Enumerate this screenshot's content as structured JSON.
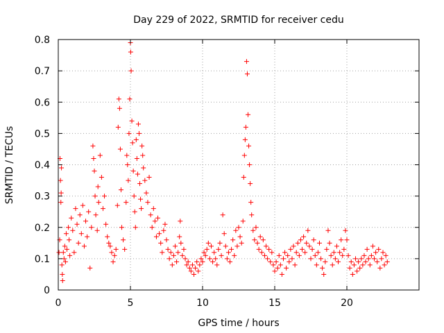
{
  "chart_data": {
    "type": "scatter",
    "title": "Day 229 of 2022, SRMTID for receiver cedu",
    "xlabel": "GPS time / hours",
    "ylabel": "SRMTID / TECUs",
    "xlim": [
      0,
      25
    ],
    "ylim": [
      0,
      0.8
    ],
    "x_ticks": [
      0,
      5,
      10,
      15,
      20
    ],
    "x_tick_labels": [
      "0",
      "5",
      "10",
      "15",
      "20"
    ],
    "y_ticks": [
      0,
      0.1,
      0.2,
      0.3,
      0.4,
      0.5,
      0.6,
      0.7,
      0.8
    ],
    "y_tick_labels": [
      "0",
      "0.1",
      "0.2",
      "0.3",
      "0.4",
      "0.5",
      "0.6",
      "0.7",
      "0.8"
    ],
    "grid": true,
    "marker": "+",
    "marker_color": "#ff0000",
    "series": [
      {
        "name": "SRMTID",
        "points": [
          [
            0.05,
            0.12
          ],
          [
            0.1,
            0.16
          ],
          [
            0.12,
            0.42
          ],
          [
            0.15,
            0.35
          ],
          [
            0.18,
            0.28
          ],
          [
            0.2,
            0.31
          ],
          [
            0.22,
            0.39
          ],
          [
            0.25,
            0.08
          ],
          [
            0.28,
            0.05
          ],
          [
            0.3,
            0.03
          ],
          [
            0.35,
            0.12
          ],
          [
            0.4,
            0.1
          ],
          [
            0.45,
            0.14
          ],
          [
            0.5,
            0.09
          ],
          [
            0.55,
            0.18
          ],
          [
            0.6,
            0.13
          ],
          [
            0.7,
            0.2
          ],
          [
            0.75,
            0.16
          ],
          [
            0.8,
            0.11
          ],
          [
            0.9,
            0.23
          ],
          [
            1.0,
            0.19
          ],
          [
            1.1,
            0.12
          ],
          [
            1.2,
            0.26
          ],
          [
            1.3,
            0.21
          ],
          [
            1.4,
            0.15
          ],
          [
            1.5,
            0.24
          ],
          [
            1.6,
            0.18
          ],
          [
            1.7,
            0.27
          ],
          [
            1.8,
            0.14
          ],
          [
            1.9,
            0.22
          ],
          [
            2.0,
            0.17
          ],
          [
            2.1,
            0.25
          ],
          [
            2.2,
            0.07
          ],
          [
            2.3,
            0.2
          ],
          [
            2.4,
            0.46
          ],
          [
            2.45,
            0.42
          ],
          [
            2.5,
            0.38
          ],
          [
            2.55,
            0.3
          ],
          [
            2.6,
            0.24
          ],
          [
            2.7,
            0.19
          ],
          [
            2.75,
            0.33
          ],
          [
            2.8,
            0.28
          ],
          [
            2.9,
            0.43
          ],
          [
            3.0,
            0.36
          ],
          [
            3.1,
            0.26
          ],
          [
            3.2,
            0.3
          ],
          [
            3.3,
            0.21
          ],
          [
            3.4,
            0.17
          ],
          [
            3.5,
            0.15
          ],
          [
            3.6,
            0.14
          ],
          [
            3.7,
            0.12
          ],
          [
            3.8,
            0.09
          ],
          [
            3.9,
            0.11
          ],
          [
            4.0,
            0.13
          ],
          [
            4.1,
            0.27
          ],
          [
            4.15,
            0.52
          ],
          [
            4.2,
            0.61
          ],
          [
            4.25,
            0.58
          ],
          [
            4.3,
            0.45
          ],
          [
            4.35,
            0.32
          ],
          [
            4.4,
            0.2
          ],
          [
            4.5,
            0.16
          ],
          [
            4.6,
            0.13
          ],
          [
            4.7,
            0.28
          ],
          [
            4.75,
            0.43
          ],
          [
            4.8,
            0.4
          ],
          [
            4.85,
            0.35
          ],
          [
            4.9,
            0.5
          ],
          [
            4.95,
            0.61
          ],
          [
            5.0,
            0.79
          ],
          [
            5.02,
            0.76
          ],
          [
            5.05,
            0.7
          ],
          [
            5.1,
            0.54
          ],
          [
            5.15,
            0.47
          ],
          [
            5.2,
            0.38
          ],
          [
            5.25,
            0.3
          ],
          [
            5.3,
            0.25
          ],
          [
            5.35,
            0.2
          ],
          [
            5.4,
            0.48
          ],
          [
            5.45,
            0.42
          ],
          [
            5.5,
            0.37
          ],
          [
            5.55,
            0.53
          ],
          [
            5.6,
            0.5
          ],
          [
            5.65,
            0.34
          ],
          [
            5.7,
            0.29
          ],
          [
            5.75,
            0.26
          ],
          [
            5.8,
            0.46
          ],
          [
            5.85,
            0.43
          ],
          [
            5.9,
            0.39
          ],
          [
            6.0,
            0.35
          ],
          [
            6.1,
            0.31
          ],
          [
            6.2,
            0.28
          ],
          [
            6.3,
            0.36
          ],
          [
            6.4,
            0.24
          ],
          [
            6.5,
            0.2
          ],
          [
            6.6,
            0.26
          ],
          [
            6.7,
            0.22
          ],
          [
            6.8,
            0.17
          ],
          [
            6.9,
            0.23
          ],
          [
            7.0,
            0.18
          ],
          [
            7.1,
            0.15
          ],
          [
            7.2,
            0.12
          ],
          [
            7.3,
            0.19
          ],
          [
            7.4,
            0.21
          ],
          [
            7.5,
            0.16
          ],
          [
            7.6,
            0.13
          ],
          [
            7.7,
            0.1
          ],
          [
            7.8,
            0.12
          ],
          [
            7.9,
            0.08
          ],
          [
            8.0,
            0.11
          ],
          [
            8.1,
            0.14
          ],
          [
            8.2,
            0.09
          ],
          [
            8.3,
            0.12
          ],
          [
            8.4,
            0.17
          ],
          [
            8.45,
            0.22
          ],
          [
            8.5,
            0.15
          ],
          [
            8.6,
            0.11
          ],
          [
            8.7,
            0.13
          ],
          [
            8.8,
            0.1
          ],
          [
            8.9,
            0.08
          ],
          [
            9.0,
            0.09
          ],
          [
            9.1,
            0.07
          ],
          [
            9.2,
            0.06
          ],
          [
            9.3,
            0.08
          ],
          [
            9.4,
            0.05
          ],
          [
            9.5,
            0.07
          ],
          [
            9.6,
            0.09
          ],
          [
            9.7,
            0.06
          ],
          [
            9.8,
            0.08
          ],
          [
            9.9,
            0.1
          ],
          [
            10.0,
            0.09
          ],
          [
            10.1,
            0.12
          ],
          [
            10.2,
            0.11
          ],
          [
            10.3,
            0.13
          ],
          [
            10.4,
            0.15
          ],
          [
            10.5,
            0.1
          ],
          [
            10.6,
            0.14
          ],
          [
            10.7,
            0.09
          ],
          [
            10.8,
            0.12
          ],
          [
            10.9,
            0.1
          ],
          [
            11.0,
            0.08
          ],
          [
            11.1,
            0.13
          ],
          [
            11.2,
            0.15
          ],
          [
            11.3,
            0.11
          ],
          [
            11.4,
            0.24
          ],
          [
            11.5,
            0.18
          ],
          [
            11.6,
            0.14
          ],
          [
            11.7,
            0.1
          ],
          [
            11.8,
            0.12
          ],
          [
            11.9,
            0.09
          ],
          [
            12.0,
            0.13
          ],
          [
            12.1,
            0.16
          ],
          [
            12.2,
            0.11
          ],
          [
            12.3,
            0.19
          ],
          [
            12.4,
            0.14
          ],
          [
            12.5,
            0.2
          ],
          [
            12.6,
            0.17
          ],
          [
            12.7,
            0.15
          ],
          [
            12.8,
            0.22
          ],
          [
            12.85,
            0.36
          ],
          [
            12.9,
            0.43
          ],
          [
            12.95,
            0.48
          ],
          [
            13.0,
            0.52
          ],
          [
            13.05,
            0.73
          ],
          [
            13.1,
            0.69
          ],
          [
            13.15,
            0.56
          ],
          [
            13.2,
            0.46
          ],
          [
            13.25,
            0.4
          ],
          [
            13.3,
            0.34
          ],
          [
            13.35,
            0.28
          ],
          [
            13.4,
            0.24
          ],
          [
            13.5,
            0.19
          ],
          [
            13.6,
            0.16
          ],
          [
            13.7,
            0.2
          ],
          [
            13.8,
            0.15
          ],
          [
            13.9,
            0.13
          ],
          [
            14.0,
            0.17
          ],
          [
            14.1,
            0.12
          ],
          [
            14.2,
            0.16
          ],
          [
            14.3,
            0.11
          ],
          [
            14.4,
            0.14
          ],
          [
            14.5,
            0.1
          ],
          [
            14.6,
            0.13
          ],
          [
            14.7,
            0.09
          ],
          [
            14.8,
            0.12
          ],
          [
            14.9,
            0.08
          ],
          [
            15.0,
            0.06
          ],
          [
            15.1,
            0.09
          ],
          [
            15.2,
            0.07
          ],
          [
            15.3,
            0.11
          ],
          [
            15.4,
            0.08
          ],
          [
            15.5,
            0.05
          ],
          [
            15.6,
            0.1
          ],
          [
            15.7,
            0.12
          ],
          [
            15.8,
            0.07
          ],
          [
            15.9,
            0.11
          ],
          [
            16.0,
            0.09
          ],
          [
            16.1,
            0.13
          ],
          [
            16.2,
            0.1
          ],
          [
            16.3,
            0.14
          ],
          [
            16.4,
            0.08
          ],
          [
            16.5,
            0.12
          ],
          [
            16.6,
            0.15
          ],
          [
            16.7,
            0.11
          ],
          [
            16.8,
            0.16
          ],
          [
            16.9,
            0.13
          ],
          [
            17.0,
            0.17
          ],
          [
            17.1,
            0.12
          ],
          [
            17.2,
            0.15
          ],
          [
            17.3,
            0.19
          ],
          [
            17.4,
            0.14
          ],
          [
            17.5,
            0.1
          ],
          [
            17.6,
            0.13
          ],
          [
            17.7,
            0.16
          ],
          [
            17.8,
            0.11
          ],
          [
            17.9,
            0.08
          ],
          [
            18.0,
            0.12
          ],
          [
            18.1,
            0.15
          ],
          [
            18.2,
            0.1
          ],
          [
            18.3,
            0.07
          ],
          [
            18.4,
            0.05
          ],
          [
            18.5,
            0.09
          ],
          [
            18.6,
            0.13
          ],
          [
            18.7,
            0.19
          ],
          [
            18.8,
            0.15
          ],
          [
            18.9,
            0.11
          ],
          [
            19.0,
            0.08
          ],
          [
            19.1,
            0.12
          ],
          [
            19.2,
            0.1
          ],
          [
            19.3,
            0.14
          ],
          [
            19.4,
            0.09
          ],
          [
            19.5,
            0.12
          ],
          [
            19.6,
            0.16
          ],
          [
            19.7,
            0.11
          ],
          [
            19.8,
            0.13
          ],
          [
            19.9,
            0.19
          ],
          [
            20.0,
            0.16
          ],
          [
            20.1,
            0.11
          ],
          [
            20.2,
            0.07
          ],
          [
            20.3,
            0.09
          ],
          [
            20.4,
            0.05
          ],
          [
            20.5,
            0.08
          ],
          [
            20.6,
            0.1
          ],
          [
            20.7,
            0.06
          ],
          [
            20.8,
            0.09
          ],
          [
            20.9,
            0.07
          ],
          [
            21.0,
            0.1
          ],
          [
            21.1,
            0.08
          ],
          [
            21.2,
            0.11
          ],
          [
            21.3,
            0.09
          ],
          [
            21.4,
            0.13
          ],
          [
            21.5,
            0.1
          ],
          [
            21.6,
            0.08
          ],
          [
            21.7,
            0.11
          ],
          [
            21.8,
            0.14
          ],
          [
            21.9,
            0.1
          ],
          [
            22.0,
            0.12
          ],
          [
            22.1,
            0.09
          ],
          [
            22.2,
            0.13
          ],
          [
            22.3,
            0.07
          ],
          [
            22.4,
            0.1
          ],
          [
            22.5,
            0.12
          ],
          [
            22.6,
            0.08
          ],
          [
            22.7,
            0.11
          ],
          [
            22.8,
            0.09
          ]
        ]
      }
    ]
  }
}
